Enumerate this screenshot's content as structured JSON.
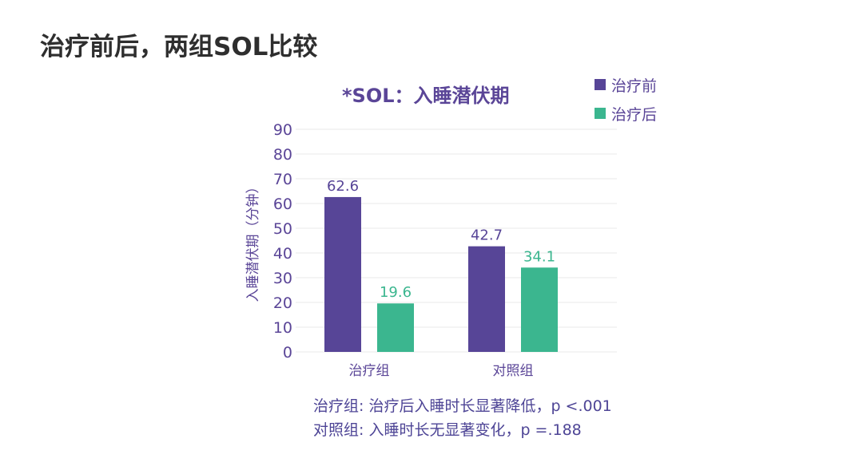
{
  "page": {
    "title": "治疗前后，两组SOL比较"
  },
  "colors": {
    "before": "#574597",
    "after": "#3bb68f",
    "grid": "#e8e8e8",
    "text": "#5a4597"
  },
  "chart_data": {
    "type": "bar",
    "title": "*SOL：入睡潜伏期",
    "xlabel": "",
    "ylabel": "入睡潜伏期（分钟）",
    "ylim": [
      0,
      90
    ],
    "yticks": [
      0,
      10,
      20,
      30,
      40,
      50,
      60,
      70,
      80,
      90
    ],
    "grid": true,
    "legend_position": "top-right",
    "categories": [
      "治疗组",
      "对照组"
    ],
    "series": [
      {
        "name": "治疗前",
        "values": [
          62.6,
          42.7
        ],
        "labels": [
          "62.6",
          "42.7"
        ]
      },
      {
        "name": "治疗后",
        "values": [
          19.6,
          34.1
        ],
        "labels": [
          "19.6",
          "34.1"
        ]
      }
    ]
  },
  "notes": [
    "治疗组: 治疗后入睡时长显著降低，p <.001",
    "对照组: 入睡时长无显著变化，p =.188"
  ]
}
